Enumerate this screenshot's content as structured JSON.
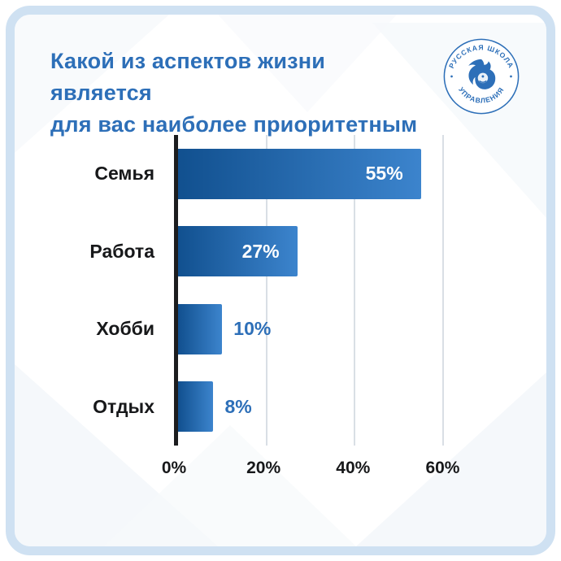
{
  "header": {
    "title_line1": "Какой из аспектов жизни является",
    "title_line2": "для вас наиболее приоритетным"
  },
  "logo": {
    "arc_text_top": "РУССКАЯ ШКОЛА",
    "arc_text_bottom": "УПРАВЛЕНИЯ"
  },
  "colors": {
    "title": "#2d6fb8",
    "bar_gradient_start": "#11508f",
    "bar_gradient_end": "#3c84cd",
    "value_inside": "#ffffff",
    "value_outside": "#2d6fb8",
    "axis": "#1c1d1f",
    "gridline": "#d9dfe5",
    "frame_border": "#cfe1f2"
  },
  "chart_data": {
    "type": "bar",
    "orientation": "horizontal",
    "title": "Какой из аспектов жизни является для вас наиболее приоритетным",
    "categories": [
      "Семья",
      "Работа",
      "Хобби",
      "Отдых"
    ],
    "values": [
      55,
      27,
      10,
      8
    ],
    "value_labels": [
      "55%",
      "27%",
      "10%",
      "8%"
    ],
    "x_ticks": [
      {
        "value": 0,
        "label": "0%"
      },
      {
        "value": 20,
        "label": "20%"
      },
      {
        "value": 40,
        "label": "40%"
      },
      {
        "value": 60,
        "label": "60%"
      }
    ],
    "xlim": [
      0,
      65
    ],
    "grid": true,
    "legend": false,
    "inside_label_threshold": 15
  }
}
